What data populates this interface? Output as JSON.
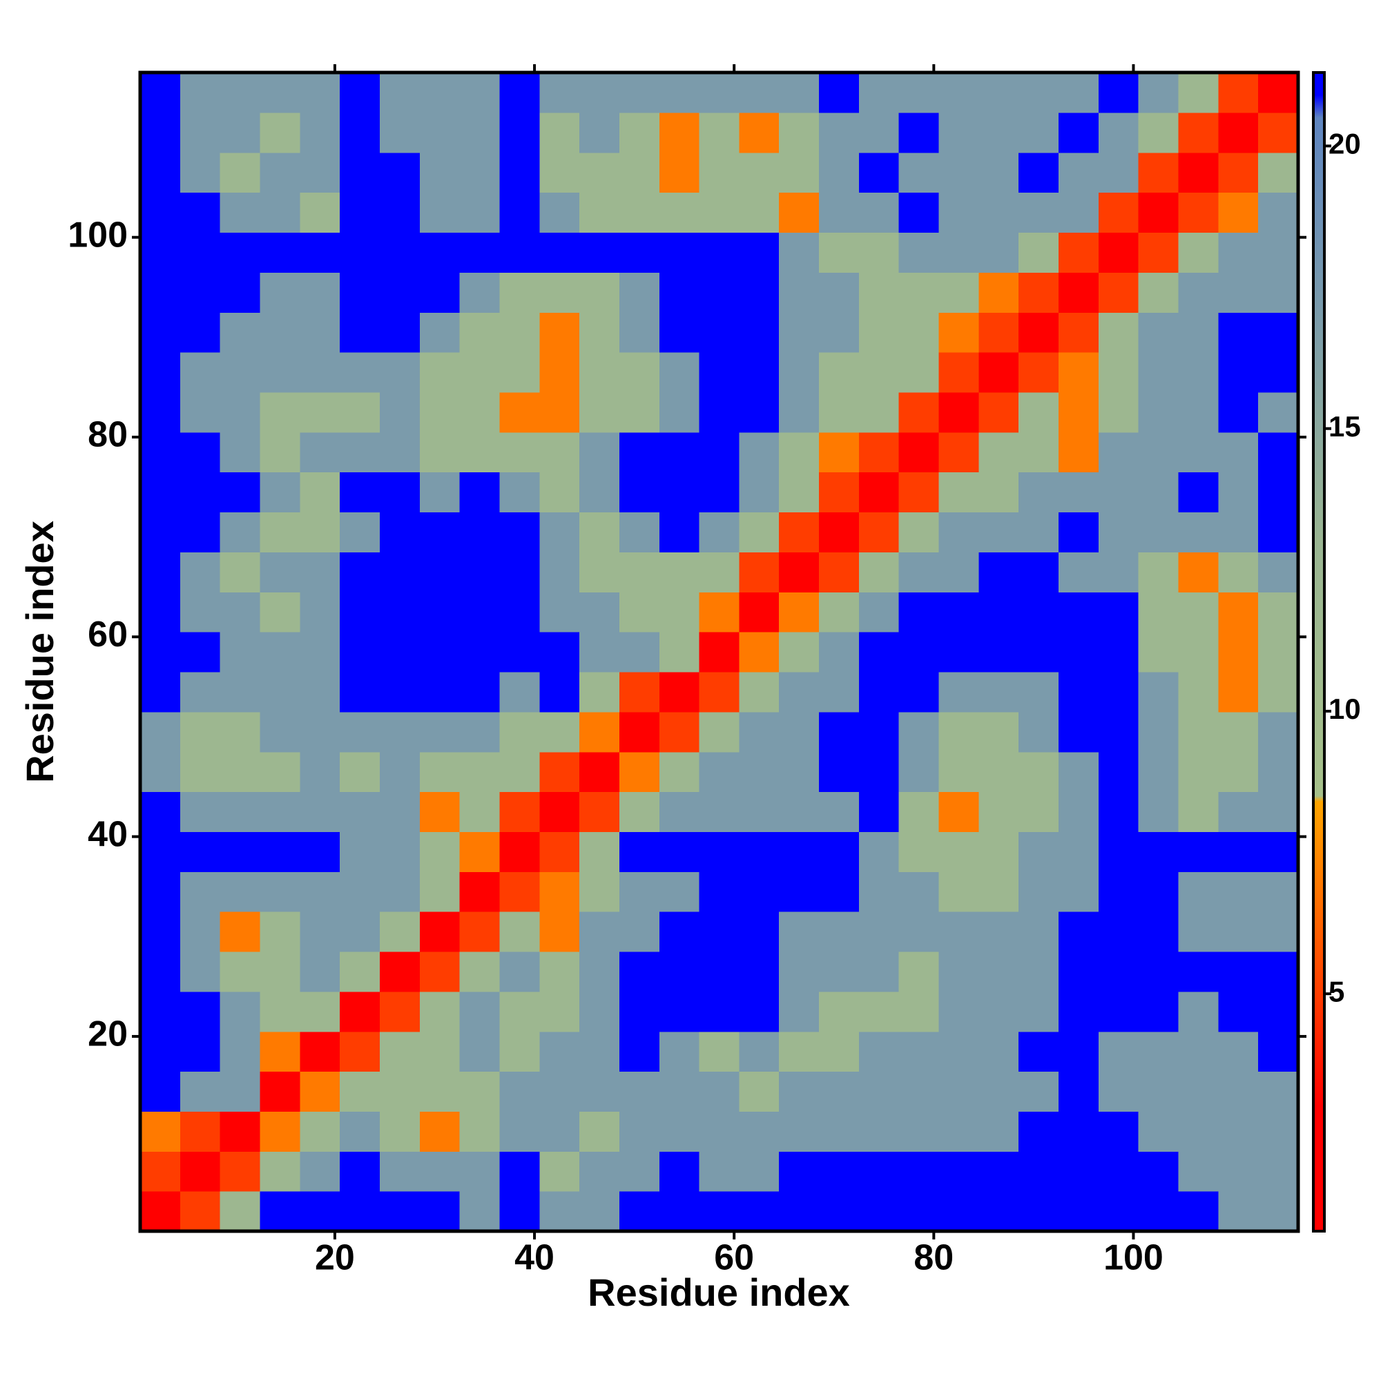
{
  "chart_data": {
    "type": "heatmap",
    "x_label": "Residue index",
    "y_label": "Residue index",
    "xlim": [
      0.5,
      116.5
    ],
    "ylim": [
      0.5,
      116.5
    ],
    "xticks": [
      20,
      40,
      60,
      80,
      100
    ],
    "yticks": [
      20,
      40,
      60,
      80,
      100
    ],
    "xbins": [
      0.5,
      4.5,
      8.5,
      12.5,
      16.5,
      20.5,
      24.5,
      28.5,
      32.5,
      36.5,
      40.5,
      44.5,
      48.5,
      52.5,
      56.5,
      60.5,
      64.5,
      68.5,
      72.5,
      76.5,
      80.5,
      84.5,
      88.5,
      92.5,
      96.5,
      100.5,
      104.5,
      108.5,
      112.5,
      116.5
    ],
    "ybins": [
      0.5,
      4.5,
      8.5,
      12.5,
      16.5,
      20.5,
      24.5,
      28.5,
      32.5,
      36.5,
      40.5,
      44.5,
      48.5,
      52.5,
      56.5,
      60.5,
      64.5,
      68.5,
      72.5,
      76.5,
      80.5,
      84.5,
      88.5,
      92.5,
      96.5,
      100.5,
      104.5,
      108.5,
      112.5,
      116.5
    ],
    "zlim": [
      0.8,
      21.3
    ],
    "zticks": [
      5,
      10,
      15,
      20
    ],
    "colorscale": [
      [
        0.8,
        "#ff0000"
      ],
      [
        3,
        "#ff0000"
      ],
      [
        8.4,
        "#ffa500"
      ],
      [
        8.5,
        "#a6c08a"
      ],
      [
        13,
        "#9ab592"
      ],
      [
        20.5,
        "#5f85c0"
      ],
      [
        20.9,
        "#0000ff"
      ],
      [
        21.3,
        "#0000ff"
      ]
    ],
    "z": [
      [
        2,
        5,
        12,
        21,
        21,
        21,
        21,
        21,
        17,
        21,
        17,
        17,
        21,
        21,
        21,
        21,
        21,
        21,
        21,
        21,
        21,
        21,
        21,
        21,
        21,
        21,
        21,
        17,
        17
      ],
      [
        5,
        2,
        5,
        12,
        17,
        21,
        17,
        17,
        17,
        21,
        12,
        17,
        17,
        21,
        17,
        17,
        21,
        21,
        21,
        21,
        21,
        21,
        21,
        21,
        21,
        21,
        17,
        17,
        17
      ],
      [
        7,
        5,
        2,
        7,
        12,
        17,
        12,
        7,
        12,
        17,
        17,
        12,
        17,
        17,
        17,
        17,
        17,
        17,
        17,
        17,
        17,
        17,
        21,
        21,
        21,
        17,
        17,
        17,
        17
      ],
      [
        21,
        17,
        17,
        2,
        7,
        12,
        12,
        12,
        12,
        17,
        17,
        17,
        17,
        17,
        17,
        12,
        17,
        17,
        17,
        17,
        17,
        17,
        17,
        21,
        17,
        17,
        17,
        17,
        17
      ],
      [
        21,
        21,
        17,
        7,
        2,
        5,
        12,
        12,
        17,
        12,
        17,
        17,
        21,
        17,
        12,
        17,
        12,
        12,
        17,
        17,
        17,
        17,
        21,
        21,
        17,
        17,
        17,
        17,
        21
      ],
      [
        21,
        21,
        17,
        12,
        12,
        2,
        5,
        12,
        17,
        12,
        12,
        17,
        21,
        21,
        21,
        21,
        17,
        12,
        12,
        12,
        17,
        17,
        17,
        21,
        21,
        21,
        17,
        21,
        21
      ],
      [
        21,
        17,
        12,
        12,
        17,
        12,
        2,
        5,
        12,
        17,
        12,
        17,
        21,
        21,
        21,
        21,
        17,
        17,
        17,
        12,
        17,
        17,
        17,
        21,
        21,
        21,
        21,
        21,
        21
      ],
      [
        21,
        17,
        7,
        12,
        17,
        17,
        12,
        2,
        5,
        12,
        7,
        17,
        17,
        21,
        21,
        21,
        17,
        17,
        17,
        17,
        17,
        17,
        17,
        21,
        21,
        21,
        17,
        17,
        17
      ],
      [
        21,
        17,
        17,
        17,
        17,
        17,
        17,
        12,
        2,
        5,
        7,
        12,
        17,
        17,
        21,
        21,
        21,
        21,
        17,
        17,
        12,
        12,
        17,
        17,
        21,
        21,
        17,
        17,
        17
      ],
      [
        21,
        21,
        21,
        21,
        21,
        17,
        17,
        12,
        7,
        2,
        5,
        12,
        21,
        21,
        21,
        21,
        21,
        21,
        17,
        12,
        12,
        12,
        17,
        17,
        21,
        21,
        21,
        21,
        21
      ],
      [
        21,
        17,
        17,
        17,
        17,
        17,
        17,
        7,
        12,
        5,
        2,
        5,
        12,
        17,
        17,
        17,
        17,
        17,
        21,
        12,
        7,
        12,
        12,
        17,
        21,
        17,
        12,
        17,
        17
      ],
      [
        17,
        12,
        12,
        12,
        17,
        12,
        17,
        12,
        12,
        12,
        5,
        2,
        7,
        12,
        17,
        17,
        17,
        21,
        21,
        17,
        12,
        12,
        12,
        17,
        21,
        17,
        12,
        12,
        17
      ],
      [
        17,
        12,
        12,
        17,
        17,
        17,
        17,
        17,
        17,
        12,
        12,
        7,
        2,
        5,
        12,
        17,
        17,
        21,
        21,
        17,
        12,
        12,
        17,
        21,
        21,
        17,
        12,
        12,
        17
      ],
      [
        21,
        17,
        17,
        17,
        17,
        21,
        21,
        21,
        21,
        17,
        21,
        12,
        5,
        2,
        5,
        12,
        17,
        17,
        21,
        21,
        17,
        17,
        17,
        21,
        21,
        17,
        12,
        7,
        12
      ],
      [
        21,
        21,
        17,
        17,
        17,
        21,
        21,
        21,
        21,
        21,
        21,
        17,
        17,
        12,
        2,
        7,
        12,
        17,
        21,
        21,
        21,
        21,
        21,
        21,
        21,
        12,
        12,
        7,
        12
      ],
      [
        21,
        17,
        17,
        12,
        17,
        21,
        21,
        21,
        21,
        21,
        17,
        17,
        12,
        12,
        7,
        2,
        7,
        12,
        17,
        21,
        21,
        21,
        21,
        21,
        21,
        12,
        12,
        7,
        12
      ],
      [
        21,
        17,
        12,
        17,
        17,
        21,
        21,
        21,
        21,
        21,
        17,
        12,
        12,
        12,
        12,
        5,
        2,
        5,
        12,
        17,
        17,
        21,
        21,
        17,
        17,
        12,
        7,
        12,
        17
      ],
      [
        21,
        21,
        17,
        12,
        12,
        17,
        21,
        21,
        21,
        21,
        17,
        12,
        17,
        21,
        17,
        12,
        5,
        2,
        5,
        12,
        17,
        17,
        17,
        21,
        17,
        17,
        17,
        17,
        21
      ],
      [
        21,
        21,
        21,
        17,
        12,
        21,
        21,
        17,
        21,
        17,
        12,
        17,
        21,
        21,
        21,
        17,
        12,
        5,
        2,
        5,
        12,
        12,
        17,
        17,
        17,
        17,
        21,
        17,
        21
      ],
      [
        21,
        21,
        17,
        12,
        17,
        17,
        17,
        12,
        12,
        12,
        12,
        17,
        21,
        21,
        21,
        17,
        12,
        7,
        5,
        2,
        5,
        12,
        12,
        7,
        17,
        17,
        17,
        17,
        21
      ],
      [
        21,
        17,
        17,
        12,
        12,
        12,
        17,
        12,
        12,
        7,
        7,
        12,
        12,
        17,
        21,
        21,
        17,
        12,
        12,
        5,
        2,
        5,
        12,
        7,
        12,
        17,
        17,
        21,
        17
      ],
      [
        21,
        17,
        17,
        17,
        17,
        17,
        17,
        12,
        12,
        12,
        7,
        12,
        12,
        17,
        21,
        21,
        17,
        12,
        12,
        12,
        5,
        2,
        5,
        7,
        12,
        17,
        17,
        21,
        21
      ],
      [
        21,
        21,
        17,
        17,
        17,
        21,
        21,
        17,
        12,
        12,
        7,
        12,
        17,
        21,
        21,
        21,
        17,
        17,
        12,
        12,
        7,
        5,
        2,
        5,
        12,
        17,
        17,
        21,
        21
      ],
      [
        21,
        21,
        21,
        17,
        17,
        21,
        21,
        21,
        17,
        12,
        12,
        12,
        17,
        21,
        21,
        21,
        17,
        17,
        12,
        12,
        12,
        7,
        5,
        2,
        5,
        12,
        17,
        17,
        17
      ],
      [
        21,
        21,
        21,
        21,
        21,
        21,
        21,
        21,
        21,
        21,
        21,
        21,
        21,
        21,
        21,
        21,
        17,
        12,
        12,
        17,
        17,
        17,
        12,
        5,
        2,
        5,
        12,
        17,
        17
      ],
      [
        21,
        21,
        17,
        17,
        12,
        21,
        21,
        17,
        17,
        21,
        17,
        12,
        12,
        12,
        12,
        12,
        7,
        17,
        17,
        21,
        17,
        17,
        17,
        17,
        5,
        2,
        5,
        7,
        17
      ],
      [
        21,
        17,
        12,
        17,
        17,
        21,
        21,
        17,
        17,
        21,
        12,
        12,
        12,
        7,
        12,
        12,
        12,
        17,
        21,
        17,
        17,
        17,
        21,
        17,
        17,
        5,
        2,
        5,
        12
      ],
      [
        21,
        17,
        17,
        12,
        17,
        21,
        17,
        17,
        17,
        21,
        12,
        17,
        12,
        7,
        12,
        7,
        12,
        17,
        17,
        21,
        17,
        17,
        17,
        21,
        17,
        12,
        5,
        2,
        5
      ],
      [
        21,
        17,
        17,
        17,
        17,
        21,
        17,
        17,
        17,
        21,
        17,
        17,
        17,
        17,
        17,
        17,
        17,
        21,
        17,
        17,
        17,
        17,
        17,
        17,
        21,
        17,
        12,
        5,
        2
      ]
    ]
  }
}
